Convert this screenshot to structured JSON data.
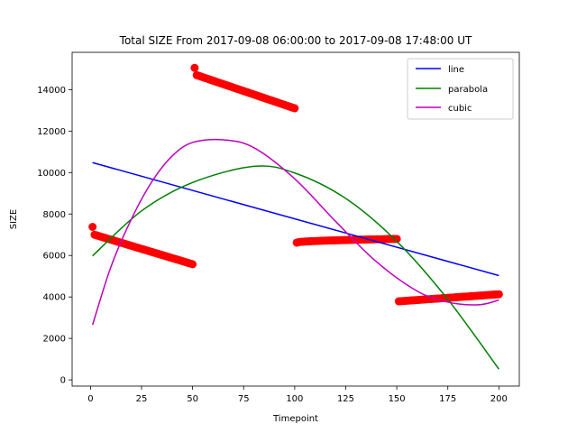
{
  "chart_data": {
    "type": "scatter",
    "title": "Total SIZE From 2017-09-08 06:00:00 to 2017-09-08 17:48:00 UT",
    "xlabel": "Timepoint",
    "ylabel": "SIZE",
    "xlim": [
      -9,
      210
    ],
    "ylim": [
      -300,
      15800
    ],
    "xticks": [
      0,
      25,
      50,
      75,
      100,
      125,
      150,
      175,
      200
    ],
    "yticks": [
      0,
      2000,
      4000,
      6000,
      8000,
      10000,
      12000,
      14000
    ],
    "grid": false,
    "legend_position": "top-right",
    "scatter": {
      "color": "#ff0000",
      "segments": [
        {
          "x_start": 1,
          "x_end": 50,
          "first_value": 7380,
          "y_start": 7000,
          "y_end": 5580
        },
        {
          "x_start": 51,
          "x_end": 100,
          "first_value": 15050,
          "y_start": 14700,
          "y_end": 13100
        },
        {
          "x_start": 101,
          "x_end": 150,
          "y_start": 6620,
          "y_end": 6820,
          "peak": 6800
        },
        {
          "x_start": 151,
          "x_end": 200,
          "y_start": 3790,
          "y_end": 4130
        }
      ]
    },
    "series": [
      {
        "name": "line",
        "color": "#0000ff",
        "x": [
          1,
          200
        ],
        "values": [
          10480,
          5030
        ]
      },
      {
        "name": "parabola",
        "color": "#008000",
        "x": [
          1,
          25,
          50,
          80,
          100,
          125,
          150,
          175,
          200
        ],
        "values": [
          5980,
          8150,
          9520,
          10300,
          9980,
          8750,
          6680,
          3880,
          520
        ]
      },
      {
        "name": "cubic",
        "color": "#bf00bf",
        "x": [
          1,
          10,
          20,
          30,
          40,
          50,
          65,
          80,
          100,
          120,
          140,
          160,
          175,
          190,
          200
        ],
        "values": [
          2650,
          5450,
          7750,
          9550,
          10800,
          11450,
          11580,
          11200,
          9700,
          7650,
          5700,
          4280,
          3750,
          3620,
          3850
        ]
      }
    ]
  }
}
